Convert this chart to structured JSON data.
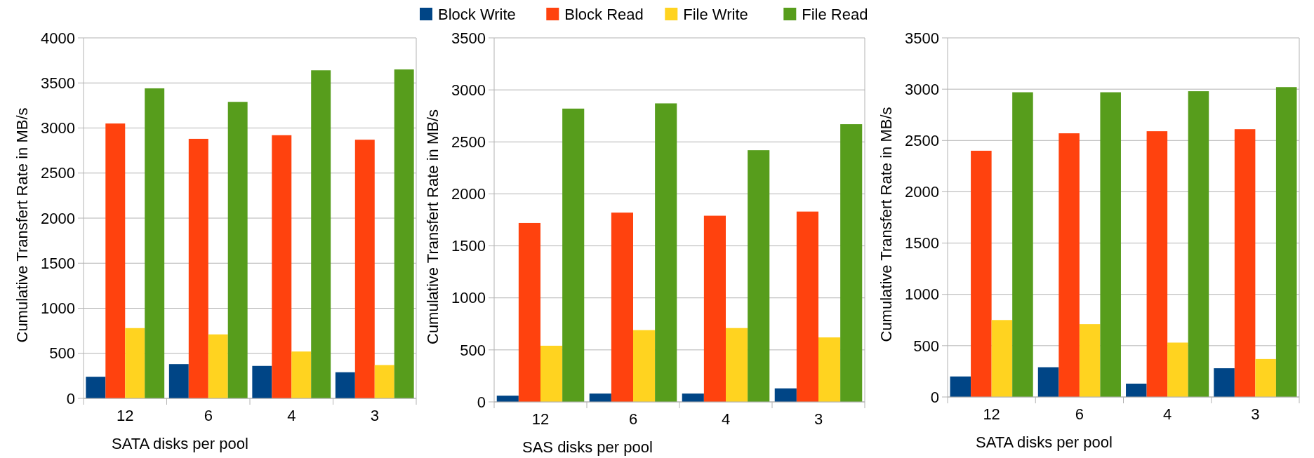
{
  "chart_data": [
    {
      "type": "bar",
      "categories": [
        "12",
        "6",
        "4",
        "3"
      ],
      "xlabel": "SATA disks per pool",
      "ylabel": "Cumulative Transfert Rate in MB/s",
      "ylim": [
        0,
        4000
      ],
      "yticks": [
        0,
        500,
        1000,
        1500,
        2000,
        2500,
        3000,
        3500,
        4000
      ],
      "grid": "y",
      "legend": "top",
      "series": [
        {
          "name": "Block Write",
          "color": "#004586",
          "values": [
            240,
            380,
            360,
            290
          ]
        },
        {
          "name": "Block Read",
          "color": "#ff420e",
          "values": [
            3050,
            2880,
            2920,
            2870
          ]
        },
        {
          "name": "File Write",
          "color": "#ffd320",
          "values": [
            780,
            710,
            520,
            370
          ]
        },
        {
          "name": "File Read",
          "color": "#579d1c",
          "values": [
            3440,
            3290,
            3640,
            3650
          ]
        }
      ]
    },
    {
      "type": "bar",
      "categories": [
        "12",
        "6",
        "4",
        "3"
      ],
      "xlabel": "SAS disks per pool",
      "ylabel": "Cumulative Transfert Rate in MB/s",
      "ylim": [
        0,
        3500
      ],
      "yticks": [
        0,
        500,
        1000,
        1500,
        2000,
        2500,
        3000,
        3500
      ],
      "grid": "y",
      "series": [
        {
          "color": "#004586",
          "values": [
            60,
            80,
            80,
            130
          ]
        },
        {
          "color": "#ff420e",
          "values": [
            1720,
            1820,
            1790,
            1830
          ]
        },
        {
          "color": "#ffd320",
          "values": [
            540,
            690,
            710,
            620
          ]
        },
        {
          "color": "#579d1c",
          "values": [
            2820,
            2870,
            2420,
            2670
          ]
        }
      ]
    },
    {
      "type": "bar",
      "categories": [
        "12",
        "6",
        "4",
        "3"
      ],
      "xlabel": "SATA disks per pool",
      "ylabel": "Cumulative Transfert Rate in MB/s",
      "ylim": [
        0,
        3500
      ],
      "yticks": [
        0,
        500,
        1000,
        1500,
        2000,
        2500,
        3000,
        3500
      ],
      "grid": "y",
      "series": [
        {
          "color": "#004586",
          "values": [
            200,
            290,
            130,
            280
          ]
        },
        {
          "color": "#ff420e",
          "values": [
            2400,
            2570,
            2590,
            2610
          ]
        },
        {
          "color": "#ffd320",
          "values": [
            750,
            710,
            530,
            370
          ]
        },
        {
          "color": "#579d1c",
          "values": [
            2970,
            2970,
            2980,
            3020
          ]
        }
      ]
    }
  ]
}
